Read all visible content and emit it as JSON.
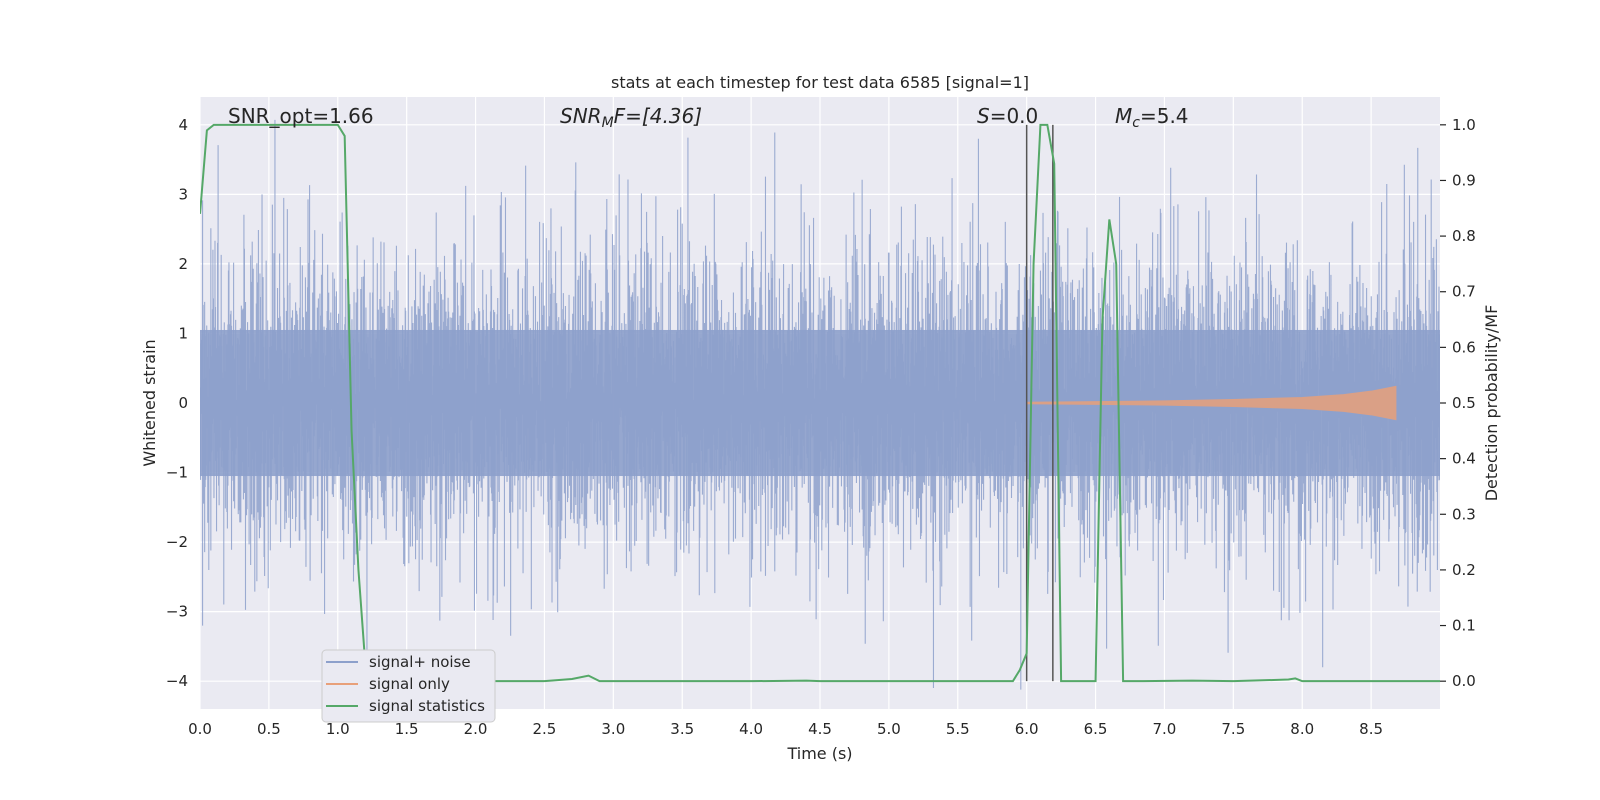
{
  "chart_data": {
    "type": "line",
    "title": "stats at each timestep for test data 6585 [signal=1]",
    "xlabel": "Time (s)",
    "ylabel": "Whitened strain",
    "y2label": "Detection probability/MF",
    "xlim": [
      0.0,
      9.0
    ],
    "ylim": [
      -4.4,
      4.4
    ],
    "y2lim": [
      -0.05,
      1.05
    ],
    "xticks": [
      0.0,
      0.5,
      1.0,
      1.5,
      2.0,
      2.5,
      3.0,
      3.5,
      4.0,
      4.5,
      5.0,
      5.5,
      6.0,
      6.5,
      7.0,
      7.5,
      8.0,
      8.5
    ],
    "xtick_labels": [
      "0.0",
      "0.5",
      "1.0",
      "1.5",
      "2.0",
      "2.5",
      "3.0",
      "3.5",
      "4.0",
      "4.5",
      "5.0",
      "5.5",
      "6.0",
      "6.5",
      "7.0",
      "7.5",
      "8.0",
      "8.5"
    ],
    "yticks": [
      -4,
      -3,
      -2,
      -1,
      0,
      1,
      2,
      3,
      4
    ],
    "ytick_labels": [
      "−4",
      "−3",
      "−2",
      "−1",
      "0",
      "1",
      "2",
      "3",
      "4"
    ],
    "y2ticks": [
      0.0,
      0.1,
      0.2,
      0.3,
      0.4,
      0.5,
      0.6,
      0.7,
      0.8,
      0.9,
      1.0
    ],
    "y2tick_labels": [
      "0.0",
      "0.1",
      "0.2",
      "0.3",
      "0.4",
      "0.5",
      "0.6",
      "0.7",
      "0.8",
      "0.9",
      "1.0"
    ],
    "grid": true,
    "legend": {
      "position": "lower-left",
      "entries": [
        "signal+ noise",
        "signal only",
        "signal statistics"
      ]
    },
    "annotations": {
      "snr_opt": "SNR_opt=1.66",
      "snr_mf_main": "SNR",
      "snr_mf_sub": "M",
      "snr_mf_rest": "F=[4.36]",
      "s_main": "S",
      "s_rest": "=0.0",
      "mc_main": "M",
      "mc_sub": "c",
      "mc_rest": "=5.4"
    },
    "vlines_x": [
      6.0,
      6.19
    ],
    "series": [
      {
        "name": "signal+ noise",
        "color": "#8da0cb",
        "style": "noise",
        "amplitude_std": 1.0,
        "x_range": [
          0.0,
          9.0
        ]
      },
      {
        "name": "signal only",
        "color": "#e8a07a",
        "style": "chirp",
        "x": [
          6.0,
          6.5,
          7.0,
          7.5,
          8.0,
          8.3,
          8.5,
          8.68
        ],
        "envelope": [
          0.01,
          0.02,
          0.03,
          0.05,
          0.08,
          0.12,
          0.17,
          0.24
        ]
      },
      {
        "name": "signal statistics",
        "color": "#55a868",
        "axis": "y2",
        "x": [
          0.0,
          0.05,
          0.1,
          0.3,
          0.5,
          0.7,
          0.9,
          1.0,
          1.05,
          1.1,
          1.15,
          1.2,
          1.3,
          1.5,
          2.0,
          2.5,
          2.7,
          2.82,
          2.9,
          3.5,
          4.0,
          4.4,
          4.5,
          5.0,
          5.5,
          5.9,
          5.95,
          6.0,
          6.05,
          6.1,
          6.15,
          6.2,
          6.25,
          6.3,
          6.4,
          6.5,
          6.55,
          6.6,
          6.65,
          6.7,
          6.8,
          7.2,
          7.5,
          7.9,
          7.95,
          8.0,
          8.5,
          9.0
        ],
        "values": [
          0.84,
          0.99,
          1.0,
          1.0,
          1.0,
          1.0,
          1.0,
          1.0,
          0.98,
          0.45,
          0.2,
          0.03,
          0.0,
          0.0,
          0.0,
          0.0,
          0.004,
          0.01,
          0.0,
          0.0,
          0.0,
          0.001,
          0.0,
          0.0,
          0.0,
          0.0,
          0.02,
          0.05,
          0.75,
          1.0,
          1.0,
          0.93,
          0.0,
          0.0,
          0.0,
          0.0,
          0.65,
          0.83,
          0.75,
          0.0,
          0.0,
          0.001,
          0.0,
          0.003,
          0.005,
          0.0,
          0.0,
          0.0
        ]
      }
    ]
  }
}
